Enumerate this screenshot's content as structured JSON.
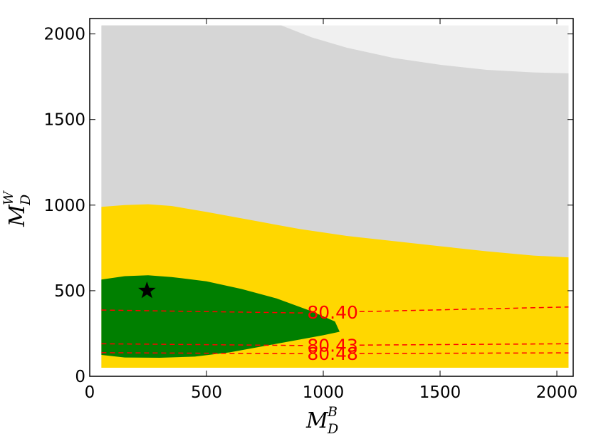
{
  "chart_data": {
    "type": "area",
    "xlabel": {
      "main": "M",
      "sub": "D",
      "sup": "B"
    },
    "ylabel": {
      "main": "M",
      "sub": "D",
      "sup": "W"
    },
    "xlim": [
      0,
      2070
    ],
    "ylim": [
      0,
      2090
    ],
    "xticks": [
      0,
      500,
      1000,
      1500,
      2000
    ],
    "yticks": [
      0,
      500,
      1000,
      1500,
      2000
    ],
    "grid": false,
    "regions": [
      {
        "name": "light-gray",
        "color": "#f0f0f0",
        "polygon": [
          [
            50,
            2050
          ],
          [
            2050,
            2050
          ],
          [
            2050,
            50
          ],
          [
            50,
            50
          ]
        ]
      },
      {
        "name": "gray",
        "color": "#d6d6d6",
        "polygon": [
          [
            50,
            2050
          ],
          [
            820,
            2050
          ],
          [
            950,
            1980
          ],
          [
            1100,
            1920
          ],
          [
            1300,
            1860
          ],
          [
            1500,
            1820
          ],
          [
            1700,
            1790
          ],
          [
            1900,
            1775
          ],
          [
            2050,
            1770
          ],
          [
            2050,
            50
          ],
          [
            50,
            50
          ]
        ]
      },
      {
        "name": "gold",
        "color": "#ffd700",
        "polygon": [
          [
            50,
            990
          ],
          [
            150,
            1000
          ],
          [
            250,
            1005
          ],
          [
            350,
            995
          ],
          [
            500,
            960
          ],
          [
            700,
            910
          ],
          [
            900,
            860
          ],
          [
            1100,
            820
          ],
          [
            1300,
            790
          ],
          [
            1500,
            760
          ],
          [
            1700,
            730
          ],
          [
            1900,
            705
          ],
          [
            2050,
            695
          ],
          [
            2050,
            50
          ],
          [
            50,
            50
          ]
        ]
      },
      {
        "name": "green",
        "color": "#007f00",
        "polygon": [
          [
            50,
            565
          ],
          [
            150,
            585
          ],
          [
            250,
            590
          ],
          [
            350,
            580
          ],
          [
            500,
            555
          ],
          [
            650,
            510
          ],
          [
            800,
            455
          ],
          [
            950,
            380
          ],
          [
            1050,
            320
          ],
          [
            1070,
            260
          ],
          [
            1000,
            240
          ],
          [
            900,
            215
          ],
          [
            800,
            190
          ],
          [
            700,
            165
          ],
          [
            600,
            140
          ],
          [
            450,
            115
          ],
          [
            300,
            108
          ],
          [
            150,
            110
          ],
          [
            50,
            125
          ]
        ]
      }
    ],
    "contours": [
      {
        "label": "80.40",
        "color": "#ff0000",
        "points": [
          [
            50,
            387
          ],
          [
            900,
            370
          ],
          [
            2050,
            405
          ]
        ],
        "label_x": 1040
      },
      {
        "label": "80.43",
        "color": "#ff0000",
        "points": [
          [
            50,
            190
          ],
          [
            900,
            180
          ],
          [
            2050,
            190
          ]
        ],
        "label_x": 1040
      },
      {
        "label": "80.48",
        "color": "#ff0000",
        "points": [
          [
            50,
            138
          ],
          [
            900,
            132
          ],
          [
            2050,
            137
          ]
        ],
        "label_x": 1040
      }
    ],
    "markers": [
      {
        "name": "best-fit",
        "shape": "star",
        "color": "#000000",
        "x": 245,
        "y": 500
      }
    ]
  }
}
